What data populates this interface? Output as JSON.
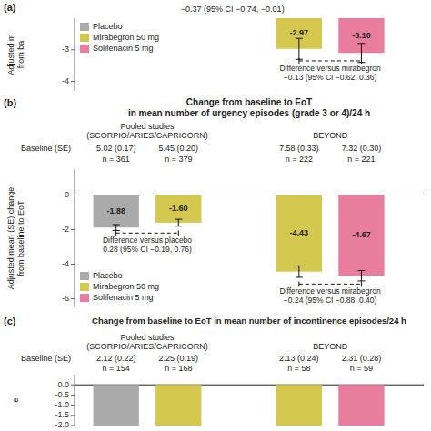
{
  "chart_data": [
    {
      "type": "bar",
      "panel_label": "(a)",
      "ylabel": "Adjusted m\nfrom ba",
      "categories": [
        null,
        null,
        null,
        null
      ],
      "series": [
        {
          "name": "Placebo",
          "color": "#aaaaaa",
          "values": [
            null,
            null,
            null,
            null
          ],
          "errors": [
            null,
            null,
            null,
            null
          ],
          "value_labels": [
            null,
            null,
            null,
            null
          ]
        },
        {
          "name": "Mirabegron 50 mg",
          "color": "#d4c84f",
          "values": [
            null,
            null,
            -2.97,
            null
          ],
          "errors": [
            null,
            null,
            0.33,
            null
          ],
          "value_labels": [
            null,
            null,
            "-2.97",
            null
          ]
        },
        {
          "name": "Solifenacin 5 mg",
          "color": "#e87d9e",
          "values": [
            null,
            null,
            null,
            -3.1
          ],
          "errors": [
            null,
            null,
            null,
            0.3
          ],
          "value_labels": [
            null,
            null,
            null,
            "-3.10"
          ]
        }
      ],
      "ylim": [
        -4.3,
        -2.0
      ],
      "yticks": [
        -3,
        -4
      ],
      "data_labels": true,
      "legend": "upper left",
      "annotations": [
        {
          "text": "−0.37 (95% CI −0.74, −0.01)"
        }
      ],
      "brackets": [
        {
          "text": "Difference versus mirabegron\n−0.13 (95% CI −0.62, 0.36)",
          "y": -3.35
        }
      ]
    },
    {
      "type": "bar",
      "panel_label": "(b)",
      "title": "Change from baseline to EoT\nin mean number of urgency episodes (grade 3 or 4)/24 h",
      "ylabel": "Adjusted mean (SE) change\nfrom baseline to EoT",
      "groups": [
        "Pooled studies\n(SCORPIO/ARIES/CAPRICORN)",
        "BEYOND"
      ],
      "baseline_label": "Baseline (SE)",
      "baselines": [
        "5.02 (0.17)",
        "5.45 (0.20)",
        "7.58 (0.33)",
        "7.32 (0.30)"
      ],
      "n": [
        "n = 361",
        "n = 379",
        "n = 222",
        "n = 221"
      ],
      "categories": [
        null,
        null,
        null,
        null
      ],
      "series": [
        {
          "name": "Placebo",
          "color": "#aaaaaa",
          "values": [
            -1.88,
            null,
            null,
            null
          ],
          "errors": [
            0.17,
            null,
            null,
            null
          ],
          "value_labels": [
            "-1.88",
            null,
            null,
            null
          ]
        },
        {
          "name": "Mirabegron 50 mg",
          "color": "#d4c84f",
          "values": [
            null,
            -1.6,
            -4.43,
            null
          ],
          "errors": [
            null,
            0.2,
            0.33,
            null
          ],
          "value_labels": [
            null,
            "-1.60",
            "-4.43",
            null
          ]
        },
        {
          "name": "Solifenacin 5 mg",
          "color": "#e87d9e",
          "values": [
            null,
            null,
            null,
            -4.67
          ],
          "errors": [
            null,
            null,
            null,
            0.3
          ],
          "value_labels": [
            null,
            null,
            null,
            "-4.67"
          ]
        }
      ],
      "ylim": [
        -6.5,
        1.5
      ],
      "yticks": [
        0,
        -2,
        -4,
        -6
      ],
      "data_labels": true,
      "legend": "lower left",
      "brackets": [
        {
          "text": "Difference versus placebo\n0.28 (95% CI −0.19, 0.76)",
          "y": -2.2
        },
        {
          "text": "Difference versus mirabegron\n−0.24 (95% CI −0.88, 0.40)",
          "y": -5.15
        }
      ]
    },
    {
      "type": "bar",
      "panel_label": "(c)",
      "title": "Change from baseline to EoT in mean number of incontinence episodes/24 h",
      "ylabel": "e",
      "groups": [
        "Pooled studies\n(SCORPIO/ARIES/CAPRICORN)",
        "BEYOND"
      ],
      "baseline_label": "Baseline (SE)",
      "baselines": [
        "2.12 (0.22)",
        "2.25 (0.19)",
        "2.13 (0.24)",
        "2.31 (0.28)"
      ],
      "n": [
        "n = 154",
        "n = 168",
        "n = 58",
        "n = 59"
      ],
      "categories": [
        null,
        null,
        null,
        null
      ],
      "values": [
        -2.0,
        -2.0,
        -2.0,
        -2.0
      ],
      "colors": [
        "#aaaaaa",
        "#d4c84f",
        "#d4c84f",
        "#e87d9e"
      ],
      "ylim": [
        -2.0,
        0.5
      ],
      "yticks": [
        {
          "value": 0.0,
          "label": "0.0"
        },
        -0.5,
        {
          "value": -1.0,
          "label": "-1.0"
        },
        -1.5,
        {
          "value": -2.0,
          "label": "-2.0"
        }
      ]
    }
  ]
}
